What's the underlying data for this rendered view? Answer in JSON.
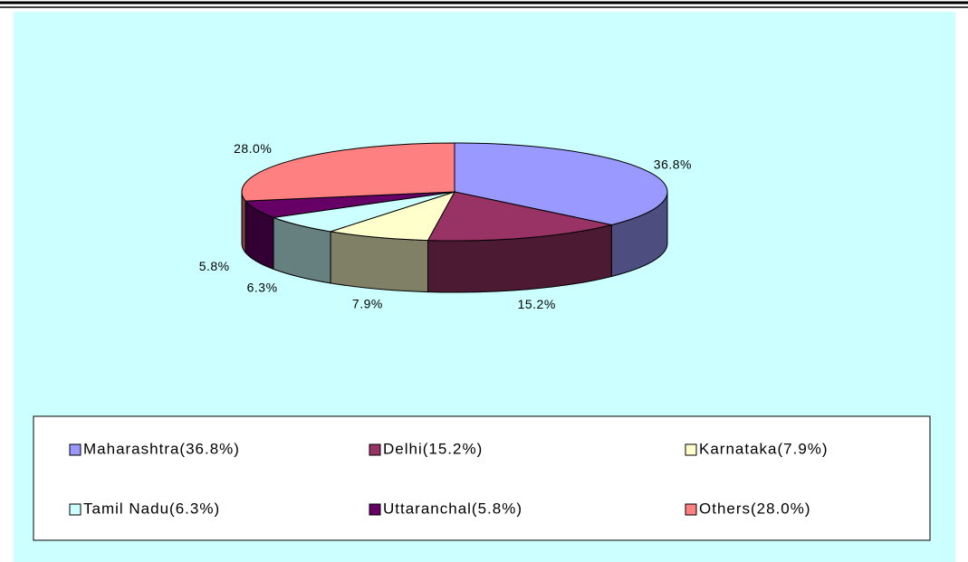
{
  "chart_data": {
    "type": "pie",
    "categories": [
      "Maharashtra(36.8%)",
      "Delhi(15.2%)",
      "Karnataka(7.9%)",
      "Tamil Nadu(6.3%)",
      "Uttaranchal(5.8%)",
      "Others(28.0%)"
    ],
    "values": [
      36.8,
      15.2,
      7.9,
      6.3,
      5.8,
      28.0
    ],
    "value_labels": [
      "36.8%",
      "15.2%",
      "7.9%",
      "6.3%",
      "5.8%",
      "28.0%"
    ],
    "colors": [
      "#9999ff",
      "#993366",
      "#ffffcc",
      "#ccffff",
      "#660066",
      "#ff8080"
    ],
    "legend": "bottom"
  }
}
